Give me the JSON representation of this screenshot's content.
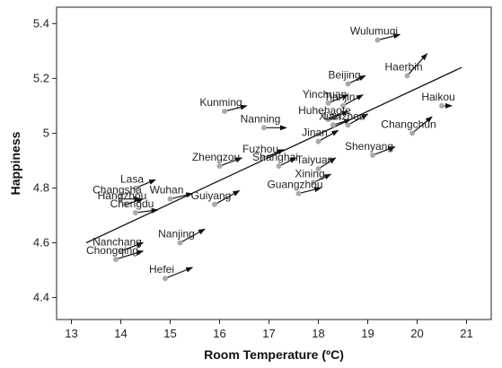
{
  "chart_data": {
    "type": "scatter",
    "xlabel": "Room Temperature (ºC)",
    "ylabel": "Happiness",
    "xlim": [
      12.7,
      21.5
    ],
    "ylim": [
      4.32,
      5.46
    ],
    "x_ticks": [
      "13",
      "14",
      "15",
      "16",
      "17",
      "18",
      "19",
      "20",
      "21"
    ],
    "y_ticks": [
      "4.4",
      "4.6",
      "4.8",
      "5",
      "5.2",
      "5.4"
    ],
    "grid": false,
    "point_color": "#aaaaaa",
    "arrow_color": "#111111",
    "trend_line": {
      "x1": 13.3,
      "y1": 4.6,
      "x2": 20.9,
      "y2": 5.24
    },
    "points": [
      {
        "city": "Wulumuqi",
        "x": 19.2,
        "y": 5.34,
        "dx": 0.45,
        "dy": 0.02
      },
      {
        "city": "Haerbin",
        "x": 19.8,
        "y": 5.21,
        "dx": 0.4,
        "dy": 0.08
      },
      {
        "city": "Beijing",
        "x": 18.6,
        "y": 5.18,
        "dx": 0.35,
        "dy": 0.03
      },
      {
        "city": "Kunming",
        "x": 16.1,
        "y": 5.08,
        "dx": 0.45,
        "dy": 0.02
      },
      {
        "city": "Yinchuan",
        "x": 18.2,
        "y": 5.11,
        "dx": 0.4,
        "dy": 0.03
      },
      {
        "city": "Tianjin",
        "x": 18.5,
        "y": 5.1,
        "dx": 0.4,
        "dy": 0.04
      },
      {
        "city": "Huhehaote",
        "x": 18.2,
        "y": 5.05,
        "dx": 0.4,
        "dy": 0.03
      },
      {
        "city": "Xian",
        "x": 18.3,
        "y": 5.03,
        "dx": 0.35,
        "dy": 0.02
      },
      {
        "city": "Haikou",
        "x": 20.5,
        "y": 5.1,
        "dx": 0.2,
        "dy": 0.0
      },
      {
        "city": "Changchun",
        "x": 19.9,
        "y": 5.0,
        "dx": 0.4,
        "dy": 0.06
      },
      {
        "city": "Nanning",
        "x": 16.9,
        "y": 5.02,
        "dx": 0.45,
        "dy": 0.0
      },
      {
        "city": "Lanzhou",
        "x": 18.6,
        "y": 5.03,
        "dx": 0.4,
        "dy": 0.04
      },
      {
        "city": "Jinan",
        "x": 18.0,
        "y": 4.97,
        "dx": 0.4,
        "dy": 0.04
      },
      {
        "city": "Shenyang",
        "x": 19.1,
        "y": 4.92,
        "dx": 0.45,
        "dy": 0.03
      },
      {
        "city": "Zhengzou",
        "x": 16.0,
        "y": 4.88,
        "dx": 0.45,
        "dy": 0.03
      },
      {
        "city": "Fuzhou",
        "x": 16.9,
        "y": 4.91,
        "dx": 0.4,
        "dy": 0.03
      },
      {
        "city": "Shanghai",
        "x": 17.2,
        "y": 4.88,
        "dx": 0.35,
        "dy": 0.03
      },
      {
        "city": "Taiyuan",
        "x": 18.0,
        "y": 4.87,
        "dx": 0.35,
        "dy": 0.04
      },
      {
        "city": "Xining",
        "x": 17.9,
        "y": 4.82,
        "dx": 0.35,
        "dy": 0.03
      },
      {
        "city": "Guangzhou",
        "x": 17.6,
        "y": 4.78,
        "dx": 0.45,
        "dy": 0.02
      },
      {
        "city": "Lasa",
        "x": 14.3,
        "y": 4.8,
        "dx": 0.4,
        "dy": 0.03
      },
      {
        "city": "Changsha",
        "x": 14.0,
        "y": 4.76,
        "dx": 0.4,
        "dy": 0.0
      },
      {
        "city": "Hangzhou",
        "x": 14.1,
        "y": 4.74,
        "dx": 0.35,
        "dy": 0.02
      },
      {
        "city": "Wuhan",
        "x": 15.0,
        "y": 4.76,
        "dx": 0.45,
        "dy": 0.02
      },
      {
        "city": "Guiyang",
        "x": 15.9,
        "y": 4.74,
        "dx": 0.5,
        "dy": 0.05
      },
      {
        "city": "Chengdu",
        "x": 14.3,
        "y": 4.71,
        "dx": 0.45,
        "dy": 0.01
      },
      {
        "city": "Nanjing",
        "x": 15.2,
        "y": 4.6,
        "dx": 0.5,
        "dy": 0.05
      },
      {
        "city": "Nanchang",
        "x": 14.0,
        "y": 4.57,
        "dx": 0.45,
        "dy": 0.03
      },
      {
        "city": "Chongqing",
        "x": 13.9,
        "y": 4.54,
        "dx": 0.55,
        "dy": 0.03
      },
      {
        "city": "Hefei",
        "x": 14.9,
        "y": 4.47,
        "dx": 0.55,
        "dy": 0.04
      }
    ]
  }
}
